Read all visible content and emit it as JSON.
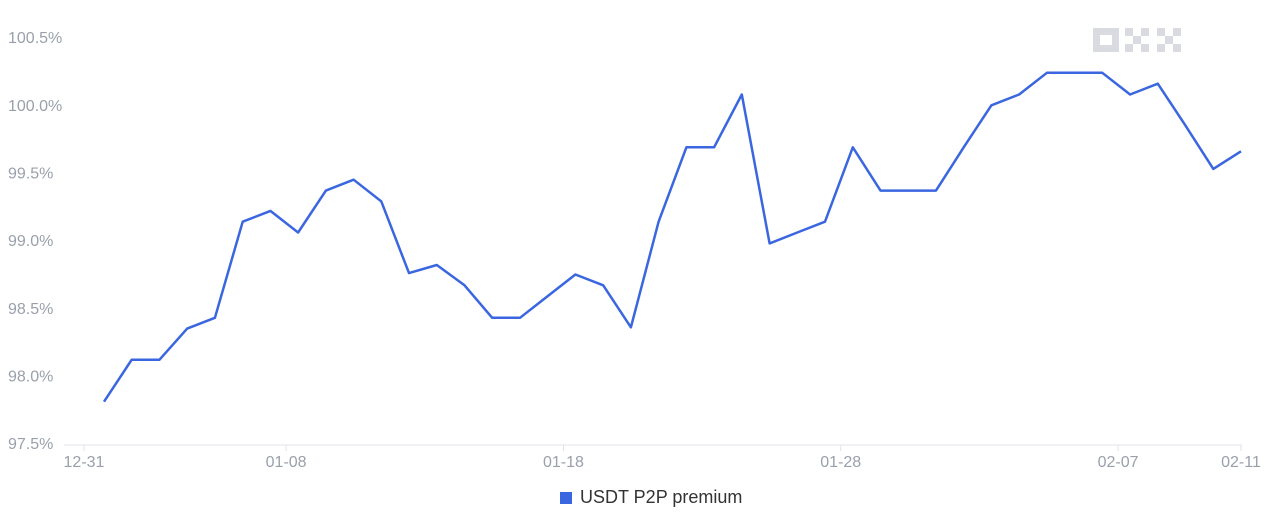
{
  "chart_data": {
    "type": "line",
    "categories": [
      "12-31",
      null,
      null,
      null,
      null,
      null,
      null,
      "01-08",
      null,
      null,
      null,
      null,
      null,
      null,
      null,
      null,
      null,
      "01-18",
      null,
      null,
      null,
      null,
      null,
      null,
      null,
      null,
      null,
      "01-28",
      null,
      null,
      null,
      null,
      null,
      null,
      null,
      null,
      null,
      "02-07",
      null,
      null,
      null,
      "02-11"
    ],
    "series": [
      {
        "name": "USDT P2P premium",
        "color": "#3a66e0",
        "values": [
          97.82,
          98.13,
          98.13,
          98.36,
          98.44,
          99.15,
          99.23,
          99.07,
          99.38,
          99.46,
          99.3,
          98.77,
          98.83,
          98.68,
          98.44,
          98.44,
          98.6,
          98.76,
          98.68,
          98.37,
          99.15,
          99.7,
          99.7,
          100.09,
          98.99,
          99.07,
          99.15,
          99.7,
          99.38,
          99.38,
          99.38,
          99.7,
          100.01,
          100.09,
          100.25,
          100.25,
          100.25,
          100.09,
          100.17,
          99.86,
          99.54,
          99.67
        ]
      }
    ],
    "ylim": [
      97.5,
      100.5
    ],
    "yticks": [
      {
        "value": 97.5,
        "label": "97.5%"
      },
      {
        "value": 98.0,
        "label": "98.0%"
      },
      {
        "value": 98.5,
        "label": "98.5%"
      },
      {
        "value": 99.0,
        "label": "99.0%"
      },
      {
        "value": 99.5,
        "label": "99.5%"
      },
      {
        "value": 100.0,
        "label": "100.0%"
      },
      {
        "value": 100.5,
        "label": "100.5%"
      }
    ],
    "grid": false
  }
}
